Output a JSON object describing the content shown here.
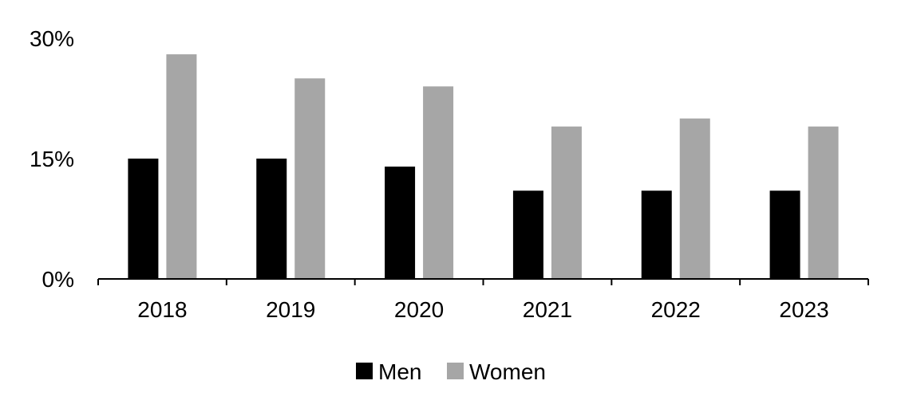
{
  "chart_data": {
    "type": "bar",
    "categories": [
      "2018",
      "2019",
      "2020",
      "2021",
      "2022",
      "2023"
    ],
    "series": [
      {
        "name": "Men",
        "color": "#000000",
        "values": [
          15,
          15,
          14,
          11,
          11,
          11
        ]
      },
      {
        "name": "Women",
        "color": "#a6a6a6",
        "values": [
          28,
          25,
          24,
          19,
          20,
          19
        ]
      }
    ],
    "ylim": [
      0,
      30
    ],
    "yticks": [
      "0%",
      "15%",
      "30%"
    ],
    "ytick_values": [
      0,
      15,
      30
    ],
    "title": "",
    "xlabel": "",
    "ylabel": "",
    "grid": false,
    "legend_position": "bottom-center"
  }
}
